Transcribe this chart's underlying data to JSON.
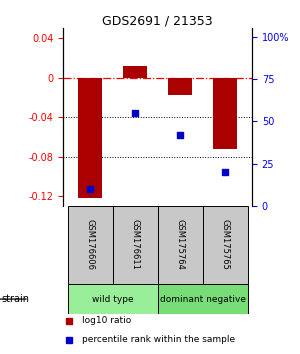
{
  "title": "GDS2691 / 21353",
  "samples": [
    "GSM176606",
    "GSM176611",
    "GSM175764",
    "GSM175765"
  ],
  "log10_ratio": [
    -0.122,
    0.012,
    -0.018,
    -0.072
  ],
  "percentile_rank": [
    10,
    55,
    42,
    20
  ],
  "groups": [
    {
      "label": "wild type",
      "color": "#99EE99",
      "indices": [
        0,
        1
      ]
    },
    {
      "label": "dominant negative",
      "color": "#77DD77",
      "indices": [
        2,
        3
      ]
    }
  ],
  "bar_color": "#AA0000",
  "dot_color": "#0000CC",
  "ylim_left": [
    -0.13,
    0.05
  ],
  "yticks_left": [
    -0.12,
    -0.08,
    -0.04,
    0.0,
    0.04
  ],
  "ylim_right": [
    0,
    105
  ],
  "yticks_right": [
    0,
    25,
    50,
    75,
    100
  ],
  "ytick_labels_right": [
    "0",
    "25",
    "50",
    "75",
    "100%"
  ],
  "hline_y": 0.0,
  "dotted_lines": [
    -0.04,
    -0.08
  ],
  "bar_width": 0.55,
  "legend_items": [
    {
      "label": "log10 ratio",
      "color": "#AA0000"
    },
    {
      "label": "percentile rank within the sample",
      "color": "#0000CC"
    }
  ],
  "group_box_color": "#C8C8C8"
}
